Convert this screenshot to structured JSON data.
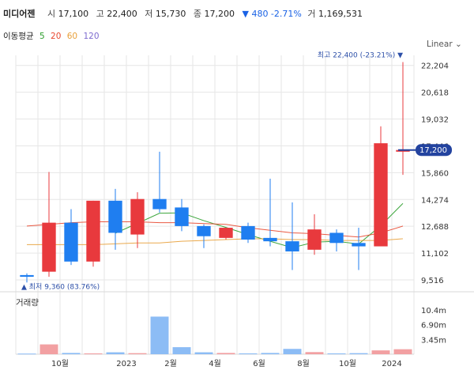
{
  "header": {
    "name": "미디어젠",
    "open_label": "시",
    "open": "17,100",
    "high_label": "고",
    "high": "22,400",
    "low_label": "저",
    "low": "15,730",
    "close_label": "종",
    "close": "17,200",
    "change": "▼ 480 -2.71%",
    "volume_label": "거",
    "volume": "1,169,531"
  },
  "ma": {
    "label": "이동평균",
    "items": [
      {
        "period": "5",
        "color": "#2a9d2a"
      },
      {
        "period": "20",
        "color": "#e8472f"
      },
      {
        "period": "60",
        "color": "#e8a03a"
      },
      {
        "period": "120",
        "color": "#7d6bcf"
      }
    ]
  },
  "scale_button": "Linear ⌄",
  "volume_title": "거래량",
  "colors": {
    "up": "#e8393d",
    "down": "#1f7ef0",
    "current_tag": "#23439f",
    "grid": "#e6e6e6"
  },
  "chart_data": {
    "type": "candlestick",
    "period": "monthly",
    "ylim": [
      9000,
      22800
    ],
    "y_ticks": [
      "22,204",
      "20,618",
      "19,032",
      "17,446",
      "15,860",
      "14,274",
      "12,688",
      "11,102",
      "9,516"
    ],
    "x_ticks": [
      {
        "index": 2,
        "label": "10월"
      },
      {
        "index": 5,
        "label": "2023"
      },
      {
        "index": 7,
        "label": "2월"
      },
      {
        "index": 9,
        "label": "4월"
      },
      {
        "index": 11,
        "label": "6월"
      },
      {
        "index": 13,
        "label": "8월"
      },
      {
        "index": 15,
        "label": "10월"
      },
      {
        "index": 17,
        "label": "2024"
      }
    ],
    "candles": [
      {
        "o": 9800,
        "h": 9900,
        "l": 9360,
        "c": 9700
      },
      {
        "o": 10000,
        "h": 15900,
        "l": 9700,
        "c": 12900
      },
      {
        "o": 12900,
        "h": 13700,
        "l": 10400,
        "c": 10600
      },
      {
        "o": 10600,
        "h": 14200,
        "l": 10300,
        "c": 14200
      },
      {
        "o": 14200,
        "h": 14900,
        "l": 11300,
        "c": 12300
      },
      {
        "o": 12200,
        "h": 14700,
        "l": 11400,
        "c": 14300
      },
      {
        "o": 14300,
        "h": 17100,
        "l": 13500,
        "c": 13700
      },
      {
        "o": 13800,
        "h": 14300,
        "l": 12400,
        "c": 12700
      },
      {
        "o": 12700,
        "h": 12800,
        "l": 11400,
        "c": 12100
      },
      {
        "o": 12000,
        "h": 12600,
        "l": 11900,
        "c": 12600
      },
      {
        "o": 12700,
        "h": 12900,
        "l": 11700,
        "c": 11900
      },
      {
        "o": 12000,
        "h": 15500,
        "l": 11500,
        "c": 11800
      },
      {
        "o": 11800,
        "h": 14100,
        "l": 10100,
        "c": 11200
      },
      {
        "o": 11300,
        "h": 13400,
        "l": 11000,
        "c": 12500
      },
      {
        "o": 12300,
        "h": 12500,
        "l": 11200,
        "c": 11700
      },
      {
        "o": 11700,
        "h": 12600,
        "l": 10100,
        "c": 11500
      },
      {
        "o": 11500,
        "h": 18600,
        "l": 11500,
        "c": 17600
      },
      {
        "o": 17100,
        "h": 22400,
        "l": 15730,
        "c": 17200
      }
    ],
    "volume": {
      "ticks": [
        "10.4m",
        "6.90m",
        "3.45m"
      ],
      "ymax": 13500000,
      "values": [
        150000,
        2300000,
        300000,
        200000,
        450000,
        250000,
        8800000,
        1650000,
        450000,
        300000,
        200000,
        300000,
        1250000,
        500000,
        200000,
        250000,
        900000,
        1169531
      ]
    },
    "ma_lines": [
      {
        "period": "5",
        "values": [
          null,
          null,
          null,
          null,
          12280,
          12860,
          13460,
          13480,
          13020,
          12620,
          12200,
          11800,
          11420,
          11750,
          11800,
          11640,
          12720,
          14040
        ]
      },
      {
        "period": "20",
        "values": [
          12700,
          12800,
          12900,
          12950,
          12950,
          12950,
          12900,
          12900,
          12850,
          12800,
          12600,
          12450,
          12300,
          12250,
          12150,
          12050,
          12300,
          12700
        ]
      },
      {
        "period": "60",
        "values": [
          11600,
          11600,
          11600,
          11600,
          11650,
          11700,
          11700,
          11800,
          11850,
          11900,
          11950,
          11950,
          11900,
          11900,
          11850,
          11850,
          11850,
          11950
        ]
      }
    ],
    "annotations": {
      "high_text": "최고 22,400 (-23.21%) ▼",
      "low_text": "▲ 최저 9,360 (83.76%)",
      "current_price": "17,200"
    }
  }
}
